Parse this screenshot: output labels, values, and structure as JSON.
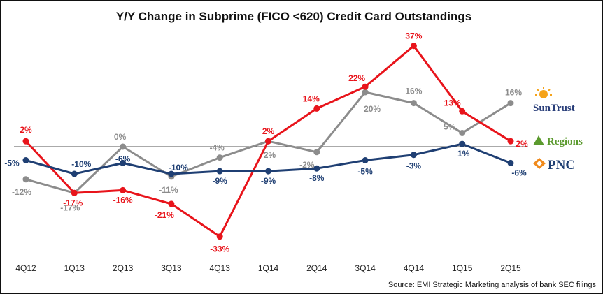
{
  "chart_data": {
    "type": "line",
    "title": "Y/Y Change in Subprime (FICO <620) Credit Card Outstandings",
    "categories": [
      "4Q12",
      "1Q13",
      "2Q13",
      "3Q13",
      "4Q13",
      "1Q14",
      "2Q14",
      "3Q14",
      "4Q14",
      "1Q15",
      "2Q15"
    ],
    "ylim": [
      -40,
      45
    ],
    "grid": false,
    "series": [
      {
        "name": "SunTrust",
        "color": "#e8141b",
        "values": [
          2,
          -17,
          -16,
          -21,
          -33,
          2,
          14,
          22,
          37,
          13,
          2
        ],
        "labels": [
          "2%",
          "-17%",
          "-16%",
          "-21%",
          "-33%",
          "2%",
          "14%",
          "22%",
          "37%",
          "13%",
          "2%"
        ]
      },
      {
        "name": "Regions",
        "color": "#8c8c8c",
        "values": [
          -12,
          -17,
          0,
          -11,
          -4,
          2,
          -2,
          20,
          16,
          5,
          16
        ],
        "labels": [
          "-12%",
          "-17%",
          "0%",
          "-11%",
          "-4%",
          "2%",
          "-2%",
          "20%",
          "16%",
          "5%",
          "16%"
        ]
      },
      {
        "name": "PNC",
        "color": "#1f3f73",
        "values": [
          -5,
          -10,
          -6,
          -10,
          -9,
          -9,
          -8,
          -5,
          -3,
          1,
          -6
        ],
        "labels": [
          "-5%",
          "-10%",
          "-6%",
          "-10%",
          "-9%",
          "-9%",
          "-8%",
          "-5%",
          "-3%",
          "1%",
          "-6%"
        ]
      }
    ]
  },
  "legend": {
    "suntrust": "SunTrust",
    "regions": "Regions",
    "pnc": "PNC"
  },
  "source": "Source: EMI Strategic Marketing analysis of bank SEC filings"
}
